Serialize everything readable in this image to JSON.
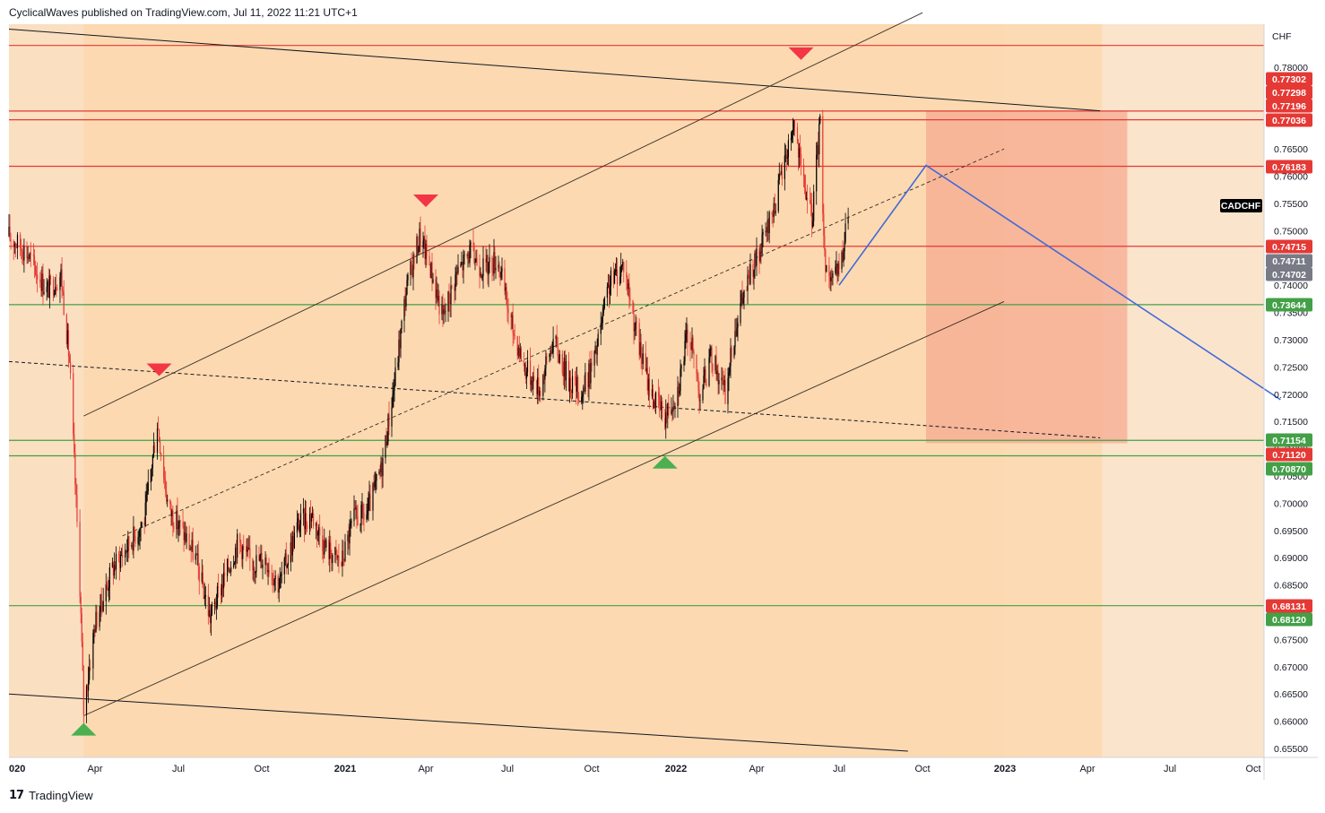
{
  "header": {
    "text": "CyclicalWaves published on TradingView.com, Jul 11, 2022 11:21 UTC+1"
  },
  "footer": {
    "logo_icon": "tradingview-logo-icon",
    "logo_glyph": "17",
    "brand": "TradingView"
  },
  "colors": {
    "background": "#fbe4cc",
    "channel_fill": "#fcd7ac",
    "target_box": "#f7a68e",
    "resistance": "#e53935",
    "support": "#43a047",
    "projection": "#3f6ad8",
    "candle_up": "#000000",
    "candle_down": "#e53935",
    "price_tag_gray": "#787b86",
    "symbol_tag": "#000000"
  },
  "chart_data": {
    "type": "candlestick",
    "symbol": "CADCHF",
    "currency": "CHF",
    "x_ticks": [
      "020",
      "Apr",
      "Jul",
      "Oct",
      "2021",
      "Apr",
      "Jul",
      "Oct",
      "2022",
      "Apr",
      "Jul",
      "Oct",
      "2023",
      "Apr",
      "Jul",
      "Oct"
    ],
    "x_tick_dates": [
      "2020-01-01",
      "2020-04-01",
      "2020-07-01",
      "2020-10-01",
      "2021-01-01",
      "2021-04-01",
      "2021-07-01",
      "2021-10-01",
      "2022-01-01",
      "2022-04-01",
      "2022-07-01",
      "2022-10-01",
      "2023-01-01",
      "2023-04-01",
      "2023-07-01",
      "2023-10-01"
    ],
    "y_ticks": [
      "0.78000",
      "0.77500",
      "0.77000",
      "0.76500",
      "0.76000",
      "0.75500",
      "0.75000",
      "0.74500",
      "0.74000",
      "0.73500",
      "0.73000",
      "0.72500",
      "0.72000",
      "0.71500",
      "0.71000",
      "0.70500",
      "0.70000",
      "0.69500",
      "0.69000",
      "0.68500",
      "0.68000",
      "0.67500",
      "0.67000",
      "0.66500",
      "0.66000",
      "0.65500"
    ],
    "y_range": [
      0.6545,
      0.7875
    ],
    "price_path": [
      [
        "2020-01-01",
        0.749
      ],
      [
        "2020-01-20",
        0.746
      ],
      [
        "2020-02-10",
        0.739
      ],
      [
        "2020-02-25",
        0.742
      ],
      [
        "2020-03-05",
        0.726
      ],
      [
        "2020-03-16",
        0.685
      ],
      [
        "2020-03-20",
        0.662
      ],
      [
        "2020-04-01",
        0.678
      ],
      [
        "2020-04-20",
        0.688
      ],
      [
        "2020-05-10",
        0.693
      ],
      [
        "2020-05-25",
        0.697
      ],
      [
        "2020-06-08",
        0.715
      ],
      [
        "2020-06-20",
        0.699
      ],
      [
        "2020-07-05",
        0.695
      ],
      [
        "2020-07-20",
        0.69
      ],
      [
        "2020-08-05",
        0.679
      ],
      [
        "2020-08-20",
        0.686
      ],
      [
        "2020-09-05",
        0.693
      ],
      [
        "2020-09-20",
        0.689
      ],
      [
        "2020-10-05",
        0.69
      ],
      [
        "2020-10-20",
        0.685
      ],
      [
        "2020-11-10",
        0.696
      ],
      [
        "2020-11-25",
        0.698
      ],
      [
        "2020-12-10",
        0.692
      ],
      [
        "2020-12-28",
        0.689
      ],
      [
        "2021-01-10",
        0.697
      ],
      [
        "2021-01-25",
        0.698
      ],
      [
        "2021-02-10",
        0.706
      ],
      [
        "2021-02-25",
        0.722
      ],
      [
        "2021-03-10",
        0.739
      ],
      [
        "2021-03-25",
        0.749
      ],
      [
        "2021-04-05",
        0.744
      ],
      [
        "2021-04-20",
        0.734
      ],
      [
        "2021-05-05",
        0.742
      ],
      [
        "2021-05-20",
        0.746
      ],
      [
        "2021-06-05",
        0.743
      ],
      [
        "2021-06-20",
        0.745
      ],
      [
        "2021-07-05",
        0.733
      ],
      [
        "2021-07-20",
        0.725
      ],
      [
        "2021-08-05",
        0.721
      ],
      [
        "2021-08-20",
        0.73
      ],
      [
        "2021-09-05",
        0.723
      ],
      [
        "2021-09-20",
        0.72
      ],
      [
        "2021-10-05",
        0.727
      ],
      [
        "2021-10-20",
        0.74
      ],
      [
        "2021-11-05",
        0.744
      ],
      [
        "2021-11-20",
        0.73
      ],
      [
        "2021-12-05",
        0.72
      ],
      [
        "2021-12-20",
        0.716
      ],
      [
        "2022-01-03",
        0.721
      ],
      [
        "2022-01-15",
        0.732
      ],
      [
        "2022-01-28",
        0.72
      ],
      [
        "2022-02-10",
        0.727
      ],
      [
        "2022-02-25",
        0.72
      ],
      [
        "2022-03-10",
        0.734
      ],
      [
        "2022-03-25",
        0.742
      ],
      [
        "2022-04-05",
        0.746
      ],
      [
        "2022-04-18",
        0.753
      ],
      [
        "2022-05-01",
        0.762
      ],
      [
        "2022-05-12",
        0.77
      ],
      [
        "2022-05-20",
        0.761
      ],
      [
        "2022-06-01",
        0.752
      ],
      [
        "2022-06-10",
        0.77
      ],
      [
        "2022-06-15",
        0.745
      ],
      [
        "2022-06-24",
        0.74
      ],
      [
        "2022-07-05",
        0.745
      ],
      [
        "2022-07-11",
        0.754
      ]
    ],
    "horizontal_levels": [
      {
        "price": 0.784,
        "kind": "resistance",
        "label": ""
      },
      {
        "price": 0.77196,
        "kind": "resistance",
        "label": "0.77196"
      },
      {
        "price": 0.77036,
        "kind": "resistance",
        "label": "0.77036"
      },
      {
        "price": 0.76183,
        "kind": "resistance",
        "label": "0.76183"
      },
      {
        "price": 0.74715,
        "kind": "resistance",
        "label": "0.74715"
      },
      {
        "price": 0.73644,
        "kind": "support",
        "label": "0.73644"
      },
      {
        "price": 0.71154,
        "kind": "support",
        "label": "0.71154"
      },
      {
        "price": 0.7087,
        "kind": "support",
        "label": "0.70870"
      },
      {
        "price": 0.6812,
        "kind": "support",
        "label": "0.68120"
      }
    ],
    "price_tags": [
      {
        "label": "0.77302",
        "price": 0.77302,
        "kind": "resistance"
      },
      {
        "label": "0.77298",
        "price": 0.77298,
        "kind": "resistance"
      },
      {
        "label": "0.77196",
        "price": 0.77196,
        "kind": "resistance"
      },
      {
        "label": "0.77036",
        "price": 0.77036,
        "kind": "resistance"
      },
      {
        "label": "0.76183",
        "price": 0.76183,
        "kind": "resistance"
      },
      {
        "label": "0.74715",
        "price": 0.74715,
        "kind": "resistance"
      },
      {
        "label": "0.74711",
        "price": 0.74711,
        "kind": "gray"
      },
      {
        "label": "0.74702",
        "price": 0.74702,
        "kind": "gray"
      },
      {
        "label": "0.73644",
        "price": 0.73644,
        "kind": "support"
      },
      {
        "label": "0.71154",
        "price": 0.71154,
        "kind": "support"
      },
      {
        "label": "0.71120",
        "price": 0.7112,
        "kind": "resistance"
      },
      {
        "label": "0.70870",
        "price": 0.7087,
        "kind": "support"
      },
      {
        "label": "0.68131",
        "price": 0.68131,
        "kind": "resistance"
      },
      {
        "label": "0.68120",
        "price": 0.6812,
        "kind": "support"
      }
    ],
    "channel": {
      "upper": [
        [
          "2020-03-20",
          0.716
        ],
        [
          "2022-10-01",
          0.79
        ]
      ],
      "middle": [
        [
          "2020-05-01",
          0.694
        ],
        [
          "2022-12-31",
          0.765
        ]
      ],
      "lower": [
        [
          "2020-03-20",
          0.661
        ],
        [
          "2022-12-31",
          0.737
        ]
      ]
    },
    "trend_lines": [
      {
        "from": [
          "2020-01-01",
          0.787
        ],
        "to": [
          "2023-04-15",
          0.772
        ],
        "style": "solid"
      },
      {
        "from": [
          "2020-01-01",
          0.726
        ],
        "to": [
          "2023-04-15",
          0.712
        ],
        "style": "dashed"
      },
      {
        "from": [
          "2020-01-01",
          0.665
        ],
        "to": [
          "2022-09-15",
          0.6545
        ],
        "style": "solid"
      }
    ],
    "projection": [
      [
        "2022-07-01",
        0.74
      ],
      [
        "2022-10-05",
        0.762
      ],
      [
        "2023-10-31",
        0.719
      ]
    ],
    "target_zone": {
      "from": "2022-10-05",
      "to": "2023-05-15",
      "top": 0.772,
      "bottom": 0.711
    },
    "markers": [
      {
        "date": "2020-03-20",
        "price": 0.659,
        "type": "low"
      },
      {
        "date": "2020-06-10",
        "price": 0.724,
        "type": "high"
      },
      {
        "date": "2021-04-01",
        "price": 0.755,
        "type": "high"
      },
      {
        "date": "2021-12-20",
        "price": 0.708,
        "type": "low"
      },
      {
        "date": "2022-05-20",
        "price": 0.782,
        "type": "high"
      }
    ],
    "symbol_label": "CADCHF"
  }
}
